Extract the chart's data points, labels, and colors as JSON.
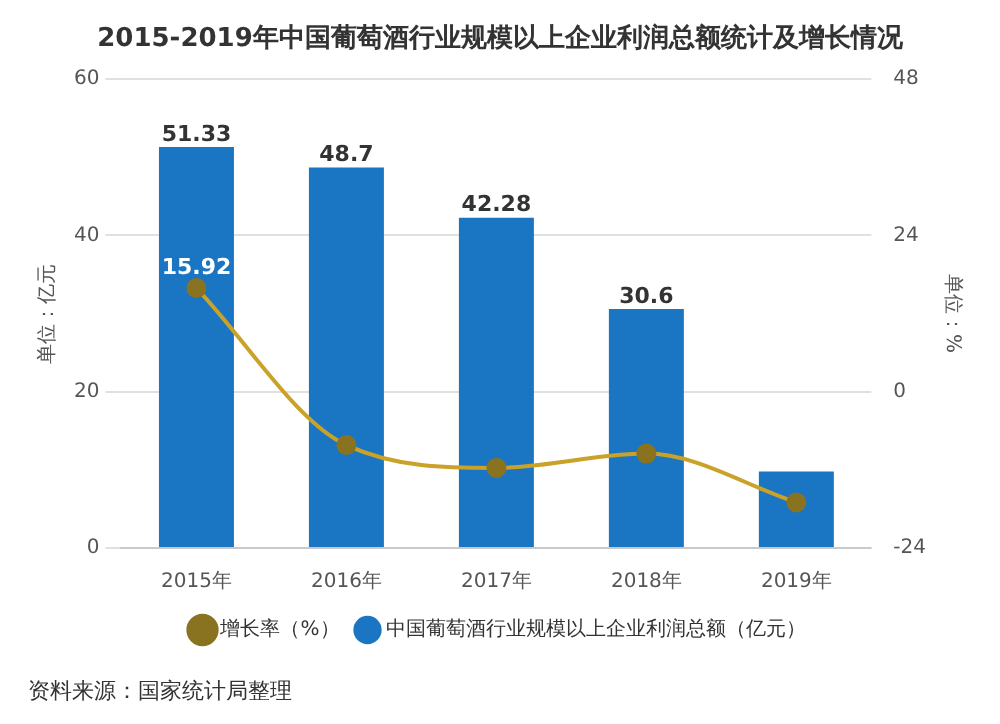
{
  "chart_data": {
    "type": "bar",
    "title": "2015-2019年中国葡萄酒行业规模以上企业利润总额统计及增长情况",
    "categories": [
      "2015年",
      "2016年",
      "2017年",
      "2018年",
      "2019年"
    ],
    "series": [
      {
        "name": "中国葡萄酒行业规模以上企业利润总额（亿元）",
        "color": "#1a75c2",
        "values": [
          51.33,
          48.7,
          42.28,
          30.6,
          9.8
        ],
        "value_labels": [
          "51.33",
          "48.7",
          "42.28",
          "30.6",
          null
        ]
      },
      {
        "name": "增长率（%）",
        "type": "line",
        "axis": "y2",
        "color": "#c9a227",
        "values": [
          15.92,
          -8.2,
          -11.7,
          -9.5,
          -17
        ],
        "value_labels": [
          "15.92",
          null,
          null,
          null,
          null
        ]
      }
    ],
    "ylabel": "单位：亿元",
    "y2label": "单位：%",
    "ylim": [
      0,
      60
    ],
    "yticks": [
      0,
      20,
      40,
      60
    ],
    "y2lim": [
      -24,
      48
    ],
    "y2ticks": [
      -24,
      0,
      24,
      48
    ],
    "grid": "y",
    "legend": "bottom",
    "marker": "circle",
    "annotations": [
      "资料来源：国家统计局整理"
    ]
  }
}
